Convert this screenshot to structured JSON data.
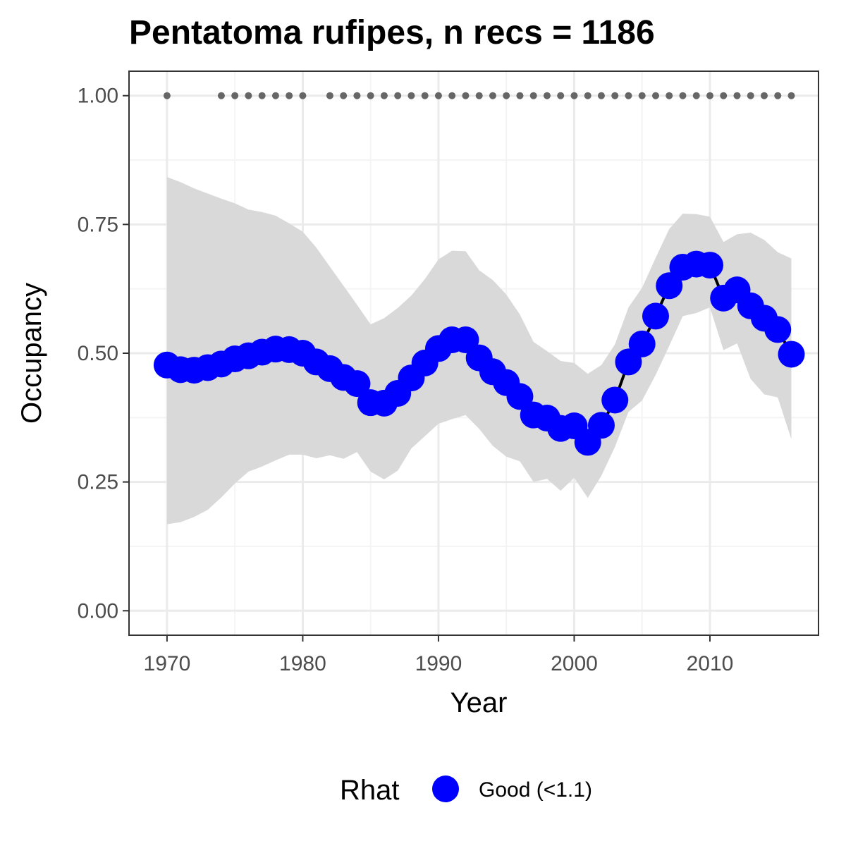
{
  "chart_data": {
    "type": "line",
    "title": "Pentatoma rufipes, n recs = 1186",
    "xlabel": "Year",
    "ylabel": "Occupancy",
    "xlim": [
      1967.2,
      2018.0
    ],
    "ylim": [
      -0.0475,
      1.0475
    ],
    "x_ticks": [
      1970,
      1980,
      1990,
      2000,
      2010
    ],
    "y_ticks": [
      0.0,
      0.25,
      0.5,
      0.75,
      1.0
    ],
    "y_tick_labels": [
      "0.00",
      "0.25",
      "0.50",
      "0.75",
      "1.00"
    ],
    "grid": true,
    "legend": {
      "title": "Rhat",
      "position": "bottom",
      "entries": [
        {
          "label": "Good (<1.1)",
          "color": "#0000ff"
        }
      ]
    },
    "colors": {
      "points": "#0000ff",
      "line": "#000000",
      "ribbon": "#d9d9d9",
      "record_dots": "#666666",
      "panel_border": "#333333",
      "grid_major": "#ebebeb",
      "grid_minor": "#f4f4f4"
    },
    "series": [
      {
        "name": "Good (<1.1)",
        "x": [
          1970,
          1971,
          1972,
          1973,
          1974,
          1975,
          1976,
          1977,
          1978,
          1979,
          1980,
          1981,
          1982,
          1983,
          1984,
          1985,
          1986,
          1987,
          1988,
          1989,
          1990,
          1991,
          1992,
          1993,
          1994,
          1995,
          1996,
          1997,
          1998,
          1999,
          2000,
          2001,
          2002,
          2003,
          2004,
          2005,
          2006,
          2007,
          2008,
          2009,
          2010,
          2011,
          2012,
          2013,
          2014,
          2015,
          2016
        ],
        "y": [
          0.477,
          0.468,
          0.467,
          0.472,
          0.479,
          0.489,
          0.495,
          0.502,
          0.508,
          0.507,
          0.5,
          0.483,
          0.47,
          0.453,
          0.441,
          0.404,
          0.403,
          0.422,
          0.452,
          0.481,
          0.509,
          0.526,
          0.526,
          0.491,
          0.464,
          0.443,
          0.416,
          0.38,
          0.374,
          0.354,
          0.359,
          0.327,
          0.36,
          0.409,
          0.483,
          0.518,
          0.572,
          0.631,
          0.667,
          0.673,
          0.671,
          0.607,
          0.623,
          0.592,
          0.568,
          0.546,
          0.498
        ],
        "lower": [
          0.168,
          0.172,
          0.182,
          0.196,
          0.22,
          0.247,
          0.27,
          0.28,
          0.292,
          0.303,
          0.303,
          0.296,
          0.302,
          0.295,
          0.308,
          0.27,
          0.255,
          0.272,
          0.315,
          0.339,
          0.363,
          0.372,
          0.38,
          0.353,
          0.32,
          0.299,
          0.29,
          0.25,
          0.256,
          0.233,
          0.258,
          0.219,
          0.262,
          0.318,
          0.386,
          0.408,
          0.458,
          0.514,
          0.572,
          0.578,
          0.589,
          0.506,
          0.519,
          0.45,
          0.42,
          0.414,
          0.333
        ],
        "upper": [
          0.842,
          0.832,
          0.82,
          0.81,
          0.8,
          0.791,
          0.779,
          0.774,
          0.767,
          0.752,
          0.736,
          0.705,
          0.668,
          0.631,
          0.594,
          0.556,
          0.568,
          0.588,
          0.612,
          0.644,
          0.682,
          0.699,
          0.698,
          0.661,
          0.642,
          0.614,
          0.575,
          0.522,
          0.504,
          0.485,
          0.481,
          0.46,
          0.477,
          0.517,
          0.589,
          0.627,
          0.685,
          0.741,
          0.771,
          0.77,
          0.765,
          0.716,
          0.731,
          0.734,
          0.72,
          0.696,
          0.684
        ]
      }
    ],
    "record_years": [
      1970,
      1974,
      1975,
      1976,
      1977,
      1978,
      1979,
      1980,
      1982,
      1983,
      1984,
      1985,
      1986,
      1987,
      1988,
      1989,
      1990,
      1991,
      1992,
      1993,
      1994,
      1995,
      1996,
      1997,
      1998,
      1999,
      2000,
      2001,
      2002,
      2003,
      2004,
      2005,
      2006,
      2007,
      2008,
      2009,
      2010,
      2011,
      2012,
      2013,
      2014,
      2015,
      2016
    ],
    "record_y": 1.0
  }
}
